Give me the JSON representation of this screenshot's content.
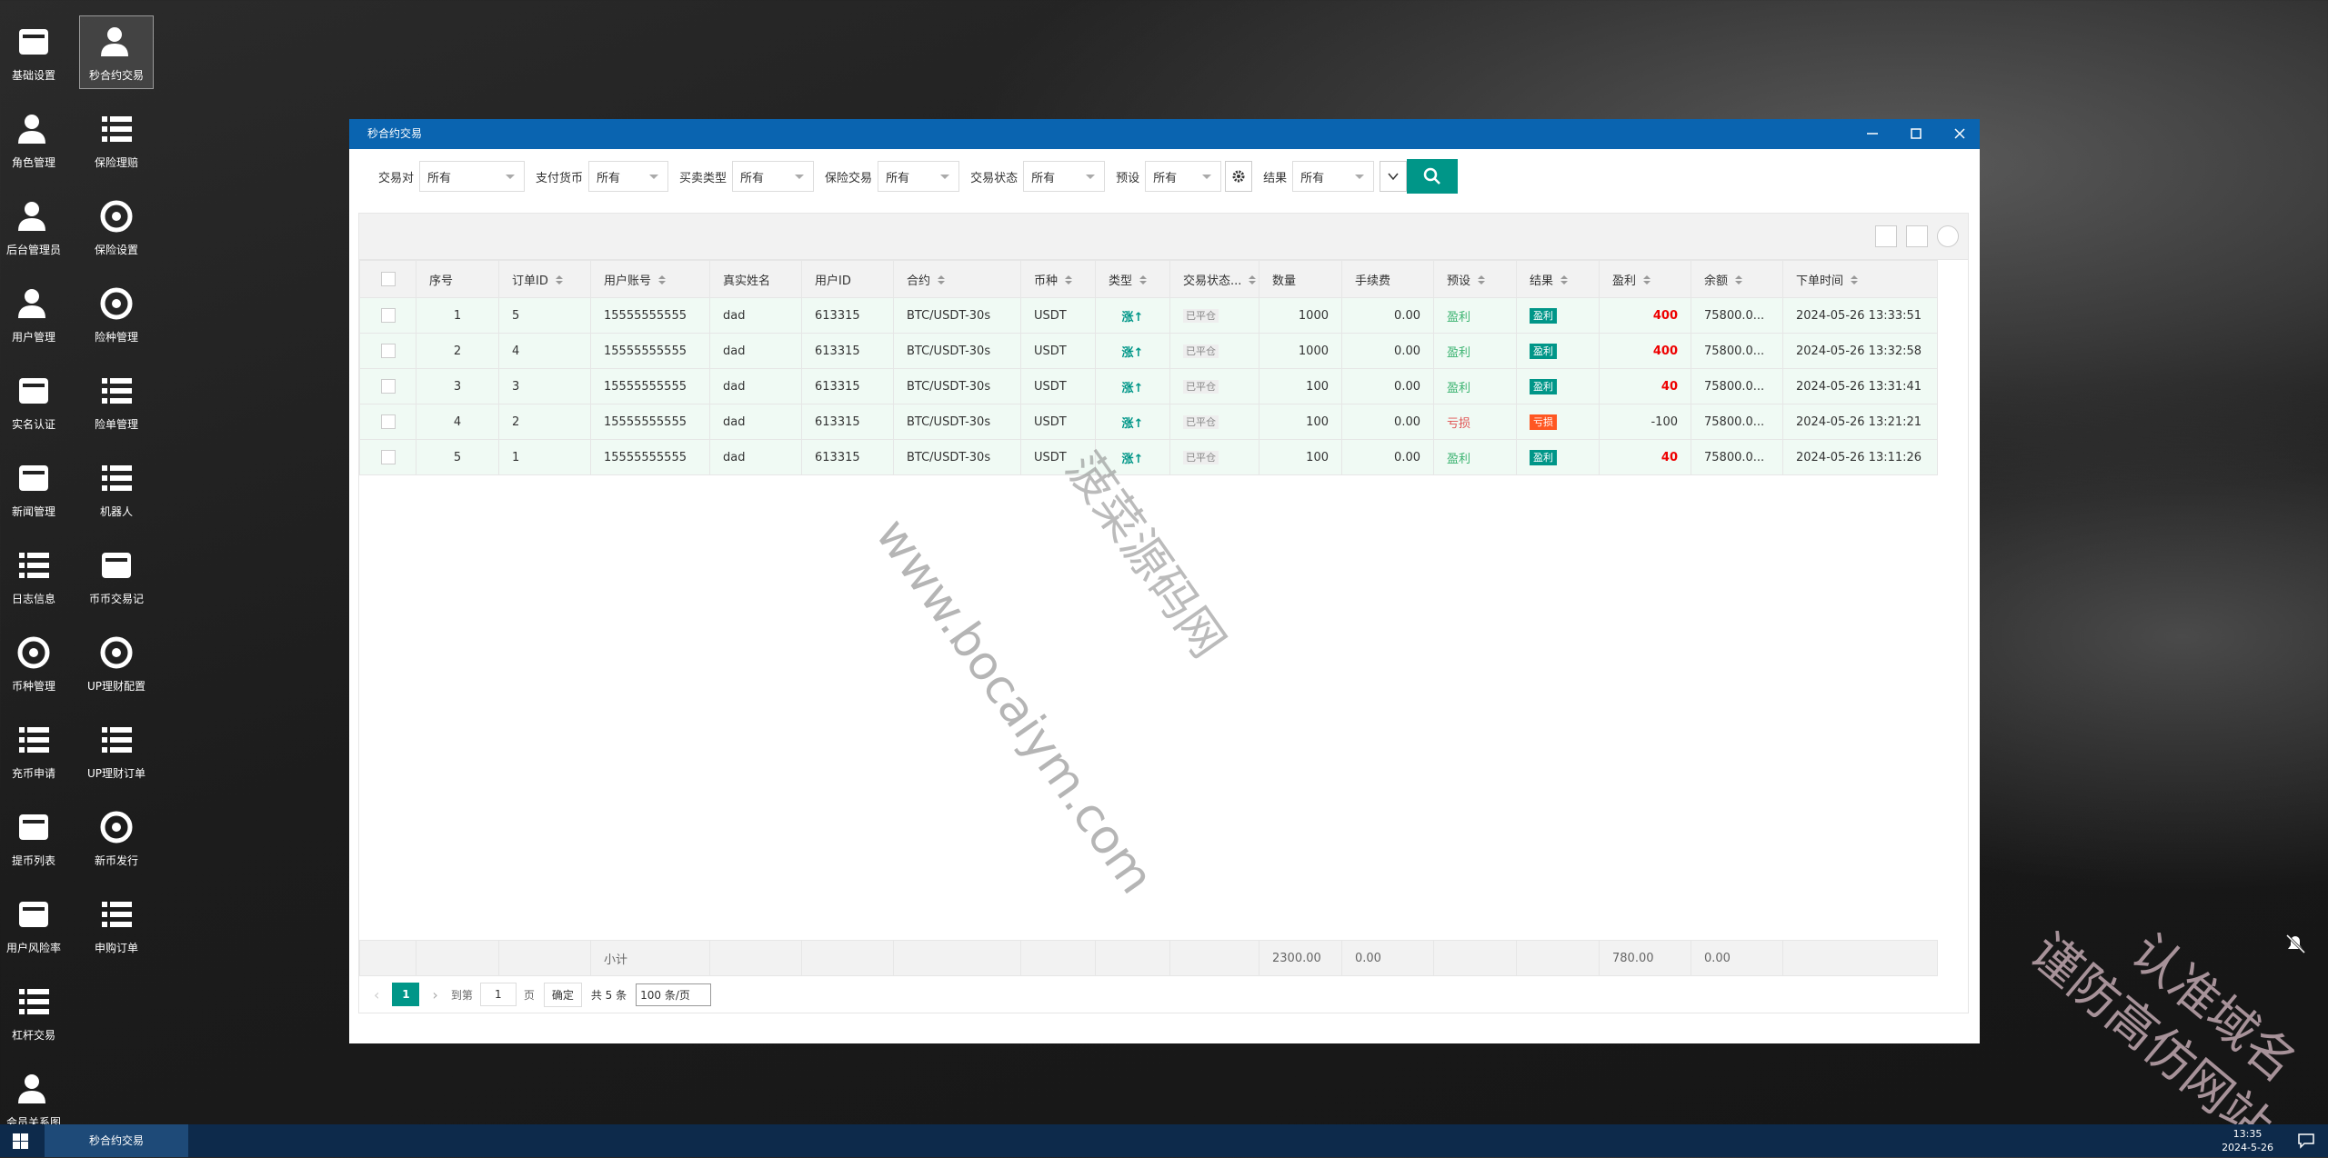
{
  "desktop": {
    "icons_left": [
      "基础设置",
      "角色管理",
      "后台管理员",
      "用户管理",
      "实名认证",
      "新闻管理",
      "日志信息",
      "币种管理",
      "充币申请",
      "提币列表",
      "用户风险率",
      "杠杆交易",
      "会员关系图"
    ],
    "icons_right": [
      "秒合约交易",
      "保险理赔",
      "保险设置",
      "险种管理",
      "险单管理",
      "机器人",
      "币币交易记",
      "UP理财配置",
      "UP理财订单",
      "新币发行",
      "申购订单"
    ]
  },
  "window": {
    "title": "秒合约交易"
  },
  "filters": [
    {
      "label": "交易对",
      "value": "所有"
    },
    {
      "label": "支付货币",
      "value": "所有"
    },
    {
      "label": "买卖类型",
      "value": "所有"
    },
    {
      "label": "保险交易",
      "value": "所有"
    },
    {
      "label": "交易状态",
      "value": "所有"
    },
    {
      "label": "预设",
      "value": "所有"
    },
    {
      "label": "结果",
      "value": "所有"
    }
  ],
  "table": {
    "headers": [
      "序号",
      "订单ID",
      "用户账号",
      "真实姓名",
      "用户ID",
      "合约",
      "币种",
      "类型",
      "交易状态...",
      "数量",
      "手续费",
      "预设",
      "结果",
      "盈利",
      "余额",
      "下单时间"
    ],
    "rows": [
      [
        "1",
        "5",
        "15555555555",
        "dad",
        "613315",
        "BTC/USDT-30s",
        "USDT",
        "涨↑",
        "已平仓",
        "1000",
        "0.00",
        "盈利",
        "盈利",
        "400",
        "75800.0...",
        "2024-05-26 13:33:51"
      ],
      [
        "2",
        "4",
        "15555555555",
        "dad",
        "613315",
        "BTC/USDT-30s",
        "USDT",
        "涨↑",
        "已平仓",
        "1000",
        "0.00",
        "盈利",
        "盈利",
        "400",
        "75800.0...",
        "2024-05-26 13:32:58"
      ],
      [
        "3",
        "3",
        "15555555555",
        "dad",
        "613315",
        "BTC/USDT-30s",
        "USDT",
        "涨↑",
        "已平仓",
        "100",
        "0.00",
        "盈利",
        "盈利",
        "40",
        "75800.0...",
        "2024-05-26 13:31:41"
      ],
      [
        "4",
        "2",
        "15555555555",
        "dad",
        "613315",
        "BTC/USDT-30s",
        "USDT",
        "涨↑",
        "已平仓",
        "100",
        "0.00",
        "亏损",
        "亏损",
        "-100",
        "75800.0...",
        "2024-05-26 13:21:21"
      ],
      [
        "5",
        "1",
        "15555555555",
        "dad",
        "613315",
        "BTC/USDT-30s",
        "USDT",
        "涨↑",
        "已平仓",
        "100",
        "0.00",
        "盈利",
        "盈利",
        "40",
        "75800.0...",
        "2024-05-26 13:11:26"
      ]
    ],
    "subtotal": {
      "label": "小计",
      "quantity": "2300.00",
      "fee": "0.00",
      "profit": "780.00",
      "balance": "0.00"
    }
  },
  "pagination": {
    "current": "1",
    "goto_label": "到第",
    "goto_value": "1",
    "page_unit": "页",
    "confirm": "确定",
    "total": "共 5 条",
    "page_size": "100 条/页"
  },
  "taskbar": {
    "app": "秒合约交易",
    "time": "13:35",
    "date": "2024-5-26"
  },
  "watermarks": {
    "site_name": "菠菜源码网",
    "site_url": "www.bocaiym.com",
    "notice_line1": "认准域名",
    "notice_line2": "谨防高仿网站"
  }
}
